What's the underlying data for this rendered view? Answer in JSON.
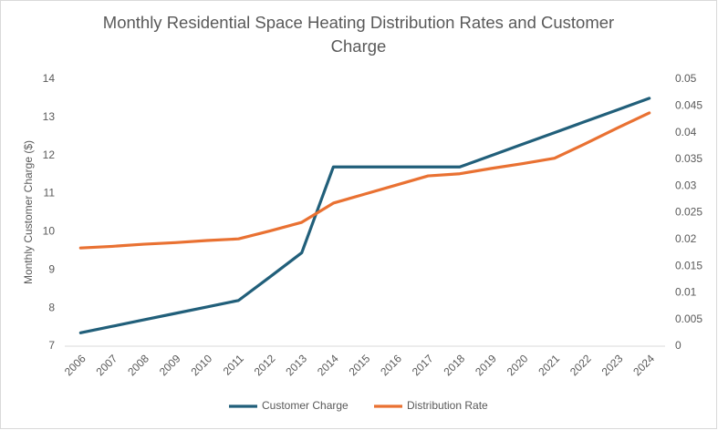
{
  "chart_data": {
    "type": "line",
    "title": "Monthly Residential Space Heating Distribution Rates and Customer Charge",
    "y_label": "Monthly Customer Charge ($)",
    "categories": [
      "2006",
      "2007",
      "2008",
      "2009",
      "2010",
      "2011",
      "2012",
      "2013",
      "2014",
      "2015",
      "2016",
      "2017",
      "2018",
      "2019",
      "2020",
      "2021",
      "2022",
      "2023",
      "2024"
    ],
    "series": [
      {
        "name": "Customer Charge",
        "color": "#215f7a",
        "values": [
          7.35,
          7.52,
          7.69,
          7.86,
          8.03,
          8.2,
          8.82,
          9.45,
          11.7,
          11.7,
          11.7,
          11.7,
          11.7,
          12.0,
          12.3,
          12.6,
          12.9,
          13.2,
          13.5
        ]
      },
      {
        "name": "Distribution Rate",
        "color": "#e97132",
        "axis": "y2",
        "values": [
          0.0184,
          0.0187,
          0.0191,
          0.0194,
          0.0198,
          0.0201,
          0.0216,
          0.0232,
          0.0268,
          0.0285,
          0.0302,
          0.0319,
          0.0323,
          0.0333,
          0.0342,
          0.0352,
          0.038,
          0.0409,
          0.0437
        ]
      }
    ],
    "ylim": [
      7,
      14
    ],
    "yticks": [
      7,
      8,
      9,
      10,
      11,
      12,
      13,
      14
    ],
    "y2lim": [
      0,
      0.05
    ],
    "y2ticks": [
      0,
      0.005,
      0.01,
      0.015,
      0.02,
      0.025,
      0.03,
      0.035,
      0.04,
      0.045,
      0.05
    ],
    "grid": false,
    "legend": "bottom"
  }
}
